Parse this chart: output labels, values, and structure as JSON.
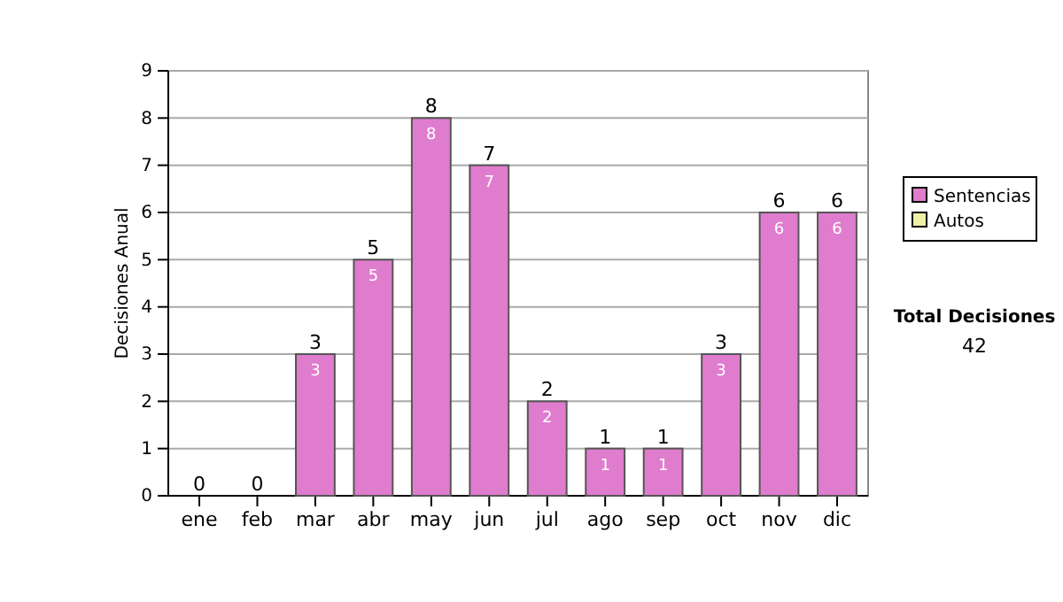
{
  "chart_data": {
    "type": "bar",
    "ylabel": "Decisiones Anual",
    "categories": [
      "ene",
      "feb",
      "mar",
      "abr",
      "may",
      "jun",
      "jul",
      "ago",
      "sep",
      "oct",
      "nov",
      "dic"
    ],
    "series": [
      {
        "name": "Sentencias",
        "color": "#e07ccd",
        "values": [
          0,
          0,
          3,
          5,
          8,
          7,
          2,
          1,
          1,
          3,
          6,
          6
        ],
        "value_labels": [
          null,
          null,
          "3",
          "5",
          "8",
          "7",
          "2",
          "1",
          "1",
          "3",
          "6",
          "6"
        ]
      },
      {
        "name": "Autos",
        "color": "#eef0a8",
        "values": [
          0,
          0,
          0,
          0,
          0,
          0,
          0,
          0,
          0,
          0,
          0,
          0
        ]
      }
    ],
    "totals": [
      "0",
      "0",
      "3",
      "5",
      "8",
      "7",
      "2",
      "1",
      "1",
      "3",
      "6",
      "6"
    ],
    "ylim": [
      0,
      9
    ],
    "yticks": [
      0,
      1,
      2,
      3,
      4,
      5,
      6,
      7,
      8,
      9
    ],
    "grid": "y",
    "legend": "right",
    "annotations": [
      "Total Decisiones",
      "42"
    ]
  }
}
